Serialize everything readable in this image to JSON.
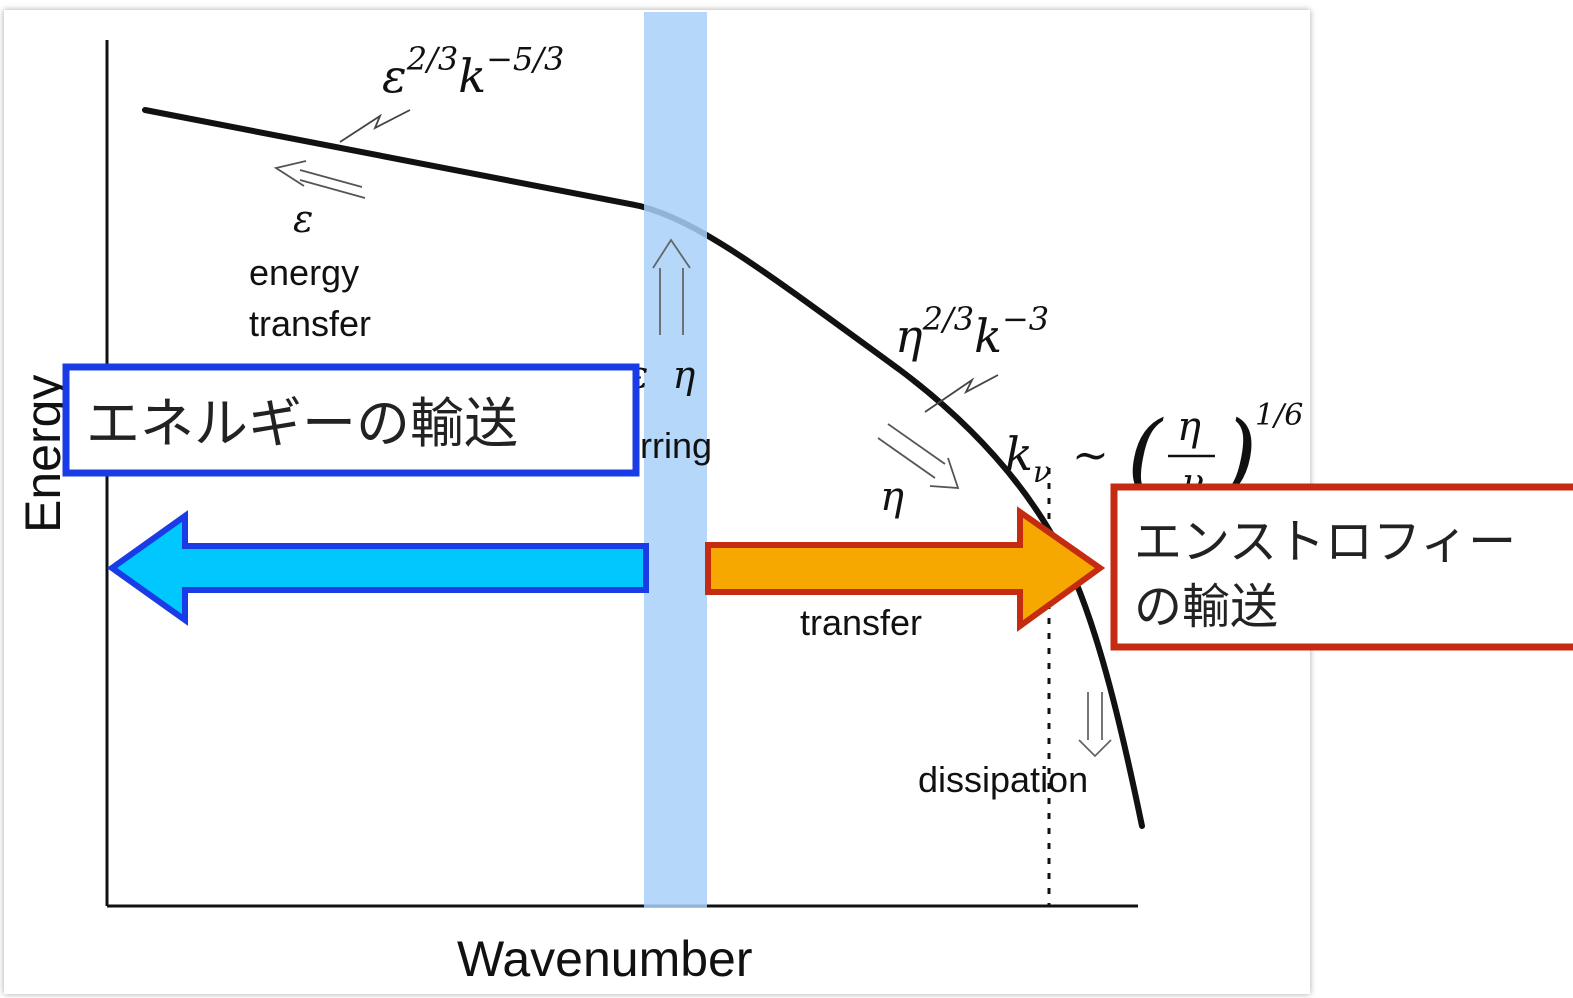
{
  "axes": {
    "x_label": "Wavenumber",
    "y_label": "Energy"
  },
  "annotations": {
    "energy_slope": "ε^{2/3}k^{-5/3}",
    "epsilon_symbol": "ε",
    "energy_transfer_line1": "energy",
    "energy_transfer_line2": "transfer",
    "injection_symbols": "ε  η",
    "stirring_fragment": "rring",
    "enstrophy_slope": "η^{2/3}k^{-3}",
    "eta_symbol": "η",
    "k_nu_formula": "k_ν ~ (η/ν)^{1/6}",
    "transfer_label": "transfer",
    "dissipation_label": "dissipation"
  },
  "overlays": {
    "blue_box_text": "エネルギーの輸送",
    "red_box_line1": "エンストロフィー",
    "red_box_line2": "の輸送"
  },
  "colors": {
    "blue_box_border": "#1a3ce6",
    "blue_arrow_fill": "#00c8ff",
    "blue_arrow_border": "#1a3ce6",
    "red_box_border": "#c42b10",
    "orange_arrow_fill": "#f7a800",
    "orange_arrow_border": "#c42b10",
    "forcing_band": "#a8d0f8",
    "curve": "#111111"
  }
}
